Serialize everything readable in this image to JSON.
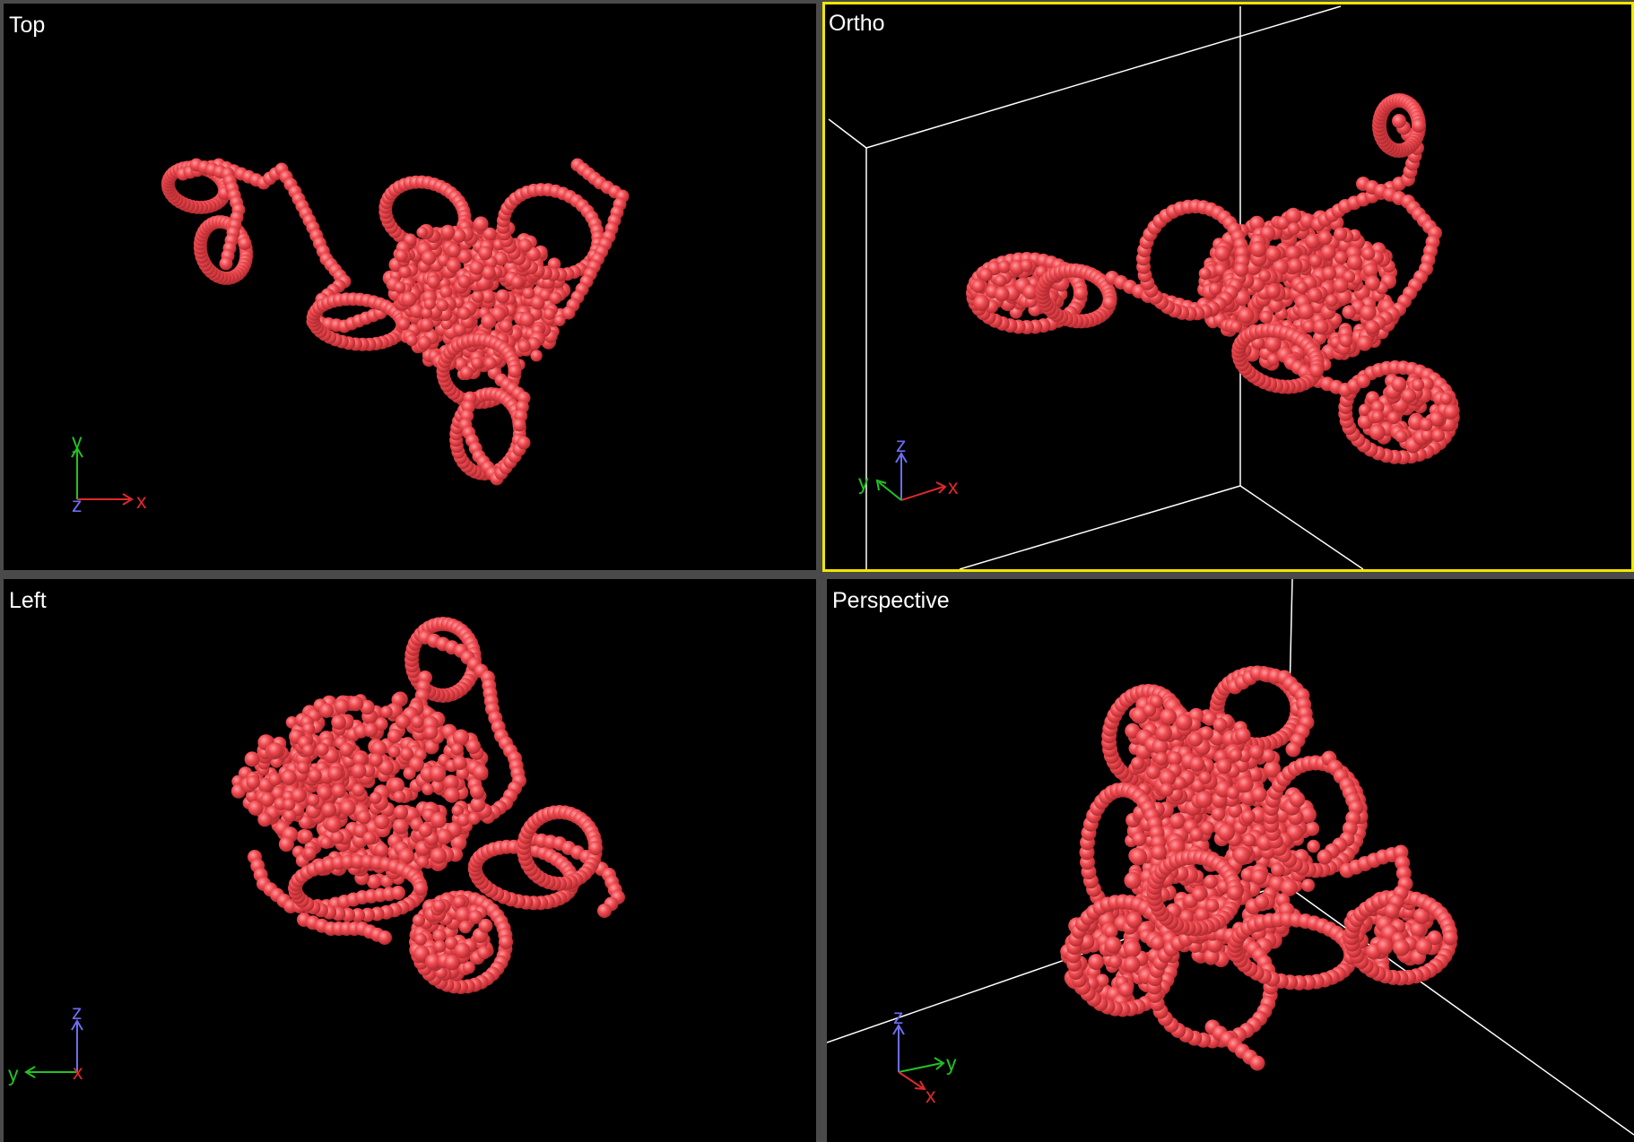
{
  "viewports": {
    "top": {
      "label": "Top",
      "axes": {
        "h": "x",
        "v": "y",
        "c": "z"
      }
    },
    "ortho": {
      "label": "Ortho",
      "active": true,
      "axes": {
        "h": "x",
        "v": "z",
        "d": "y"
      }
    },
    "left": {
      "label": "Left",
      "axes": {
        "h": "y",
        "v": "z",
        "c": "x"
      }
    },
    "perspective": {
      "label": "Perspective",
      "axes": {
        "v": "z",
        "h": "y",
        "d": "x"
      }
    }
  },
  "colors": {
    "background": "#000000",
    "bead": "#ef4a50",
    "bead_highlight": "#ff9da0",
    "active_border": "#f2e600",
    "box_edge": "#ffffff",
    "axis_x": "#e0282c",
    "axis_y": "#22c322",
    "axis_z": "#6d6df2"
  },
  "icons": {
    "bead": "sphere-icon",
    "axis": "axis-triad-icon"
  }
}
